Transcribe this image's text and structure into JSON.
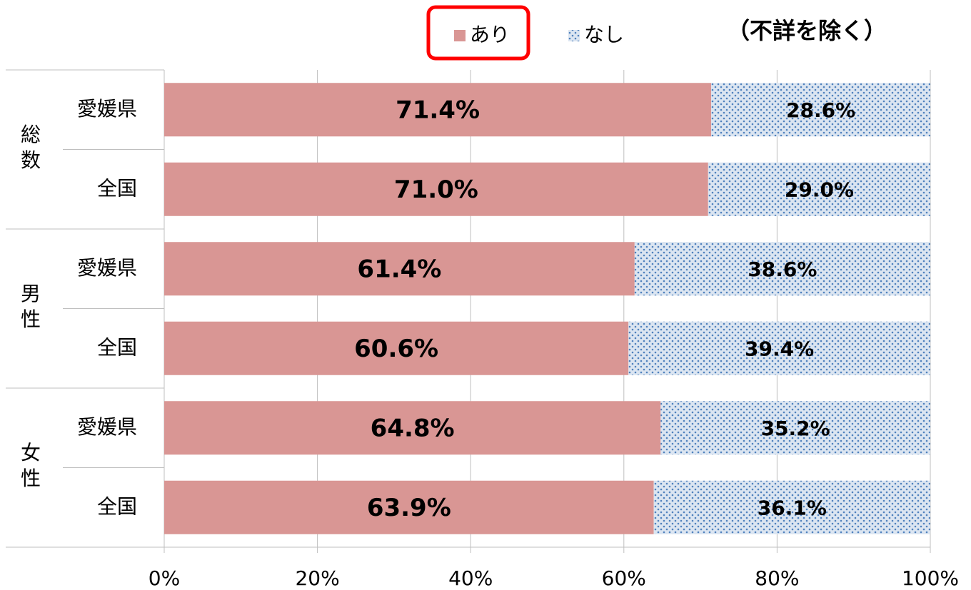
{
  "chart_data": {
    "type": "stacked_bar_horizontal",
    "annotation": "（不詳を除く）",
    "groups": [
      "総数",
      "男性",
      "女性"
    ],
    "categories": [
      "愛媛県",
      "全国",
      "愛媛県",
      "全国",
      "愛媛県",
      "全国"
    ],
    "series": [
      {
        "name": "あり",
        "color": "#d99694",
        "values": [
          71.4,
          71.0,
          61.4,
          60.6,
          64.8,
          63.9
        ],
        "value_labels": [
          "71.4%",
          "71.0%",
          "61.4%",
          "60.6%",
          "64.8%",
          "63.9%"
        ],
        "label_color": "#ff0000"
      },
      {
        "name": "なし",
        "color": "#95b3d7",
        "values": [
          28.6,
          29.0,
          38.6,
          39.4,
          35.2,
          36.1
        ],
        "value_labels": [
          "28.6%",
          "29.0%",
          "38.6%",
          "39.4%",
          "35.2%",
          "36.1%"
        ],
        "label_color": "#000000"
      }
    ],
    "xlim": [
      0,
      100
    ],
    "xticks": [
      {
        "value": 0,
        "label": "0%"
      },
      {
        "value": 20,
        "label": "20%"
      },
      {
        "value": 40,
        "label": "40%"
      },
      {
        "value": 60,
        "label": "60%"
      },
      {
        "value": 80,
        "label": "80%"
      },
      {
        "value": 100,
        "label": "100%"
      }
    ],
    "grid": true
  }
}
